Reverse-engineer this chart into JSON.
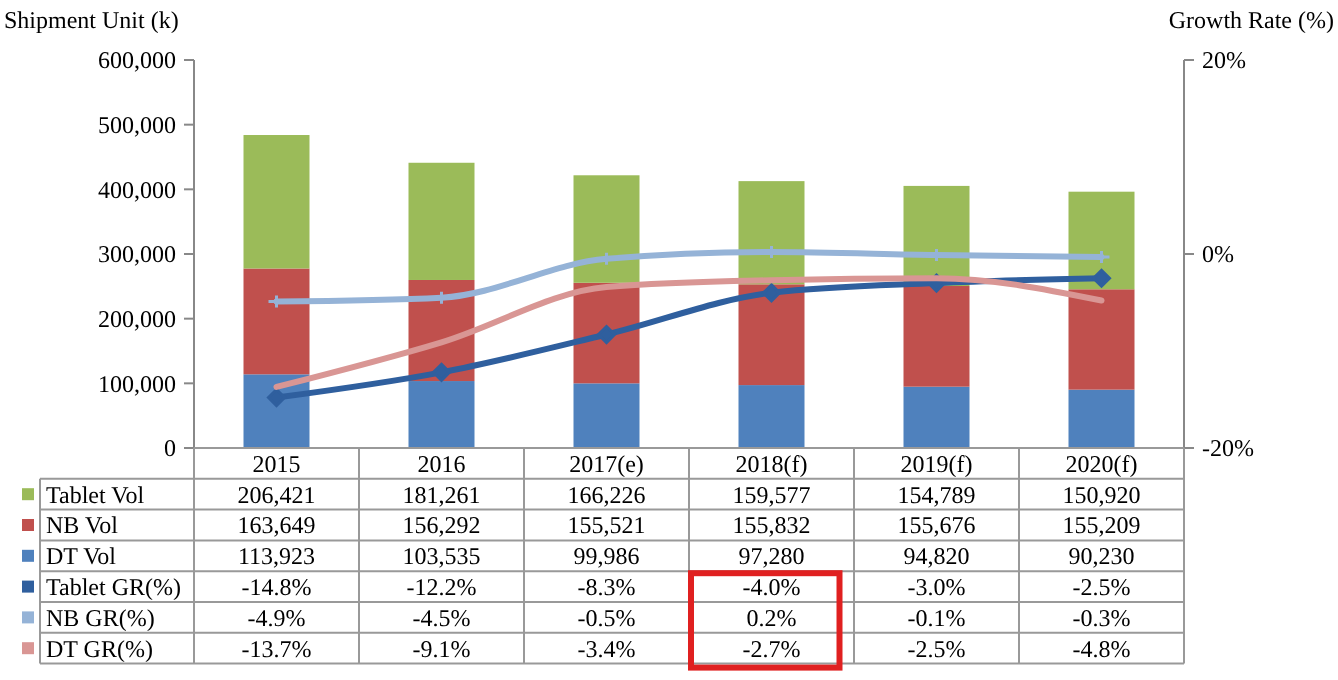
{
  "chart_data": {
    "type": "bar",
    "stacked": true,
    "ylabel": "Shipment Unit (k)",
    "y2label": "Growth Rate (%)",
    "categories": [
      "2015",
      "2016",
      "2017(e)",
      "2018(f)",
      "2019(f)",
      "2020(f)"
    ],
    "ylim": [
      0,
      600000
    ],
    "yticks": [
      {
        "value": 0,
        "label": "0"
      },
      {
        "value": 100000,
        "label": "100,000"
      },
      {
        "value": 200000,
        "label": "200,000"
      },
      {
        "value": 300000,
        "label": "300,000"
      },
      {
        "value": 400000,
        "label": "400,000"
      },
      {
        "value": 500000,
        "label": "500,000"
      },
      {
        "value": 600000,
        "label": "600,000"
      }
    ],
    "y2lim": [
      -20,
      20
    ],
    "y2ticks": [
      {
        "value": -20,
        "label": "-20%"
      },
      {
        "value": 0,
        "label": "0%"
      },
      {
        "value": 20,
        "label": "20%"
      }
    ],
    "legend": "bottom left",
    "series": [
      {
        "name": "DT Vol",
        "color": "#4f81bd",
        "value_labels": [
          "113,923",
          "103,535",
          "99,986",
          "97,280",
          "94,820",
          "90,230"
        ],
        "values": [
          113923,
          103535,
          99986,
          97280,
          94820,
          90230
        ]
      },
      {
        "name": "NB Vol",
        "color": "#c0504d",
        "value_labels": [
          "163,649",
          "156,292",
          "155,521",
          "155,832",
          "155,676",
          "155,209"
        ],
        "values": [
          163649,
          156292,
          155521,
          155832,
          155676,
          155209
        ]
      },
      {
        "name": "Tablet Vol",
        "color": "#9bbb59",
        "value_labels": [
          "206,421",
          "181,261",
          "166,226",
          "159,577",
          "154,789",
          "150,920"
        ],
        "values": [
          206421,
          181261,
          166226,
          159577,
          154789,
          150920
        ]
      },
      {
        "name": "Tablet GR(%)",
        "type": "line",
        "axis": "y2",
        "color": "#2f5f9e",
        "marker": "diamond",
        "value_labels": [
          "-14.8%",
          "-12.2%",
          "-8.3%",
          "-4.0%",
          "-3.0%",
          "-2.5%"
        ],
        "values": [
          -14.8,
          -12.2,
          -8.3,
          -4.0,
          -3.0,
          -2.5
        ]
      },
      {
        "name": "NB GR(%)",
        "type": "line",
        "axis": "y2",
        "color": "#95b3d7",
        "marker": "cross",
        "value_labels": [
          "-4.9%",
          "-4.5%",
          "-0.5%",
          "0.2%",
          "-0.1%",
          "-0.3%"
        ],
        "values": [
          -4.9,
          -4.5,
          -0.5,
          0.2,
          -0.1,
          -0.3
        ]
      },
      {
        "name": "DT GR(%)",
        "type": "line",
        "axis": "y2",
        "color": "#d99694",
        "marker": "none",
        "value_labels": [
          "-13.7%",
          "-9.1%",
          "-3.4%",
          "-2.7%",
          "-2.5%",
          "-4.8%"
        ],
        "values": [
          -13.7,
          -9.1,
          -3.4,
          -2.7,
          -2.5,
          -4.8
        ]
      }
    ]
  }
}
